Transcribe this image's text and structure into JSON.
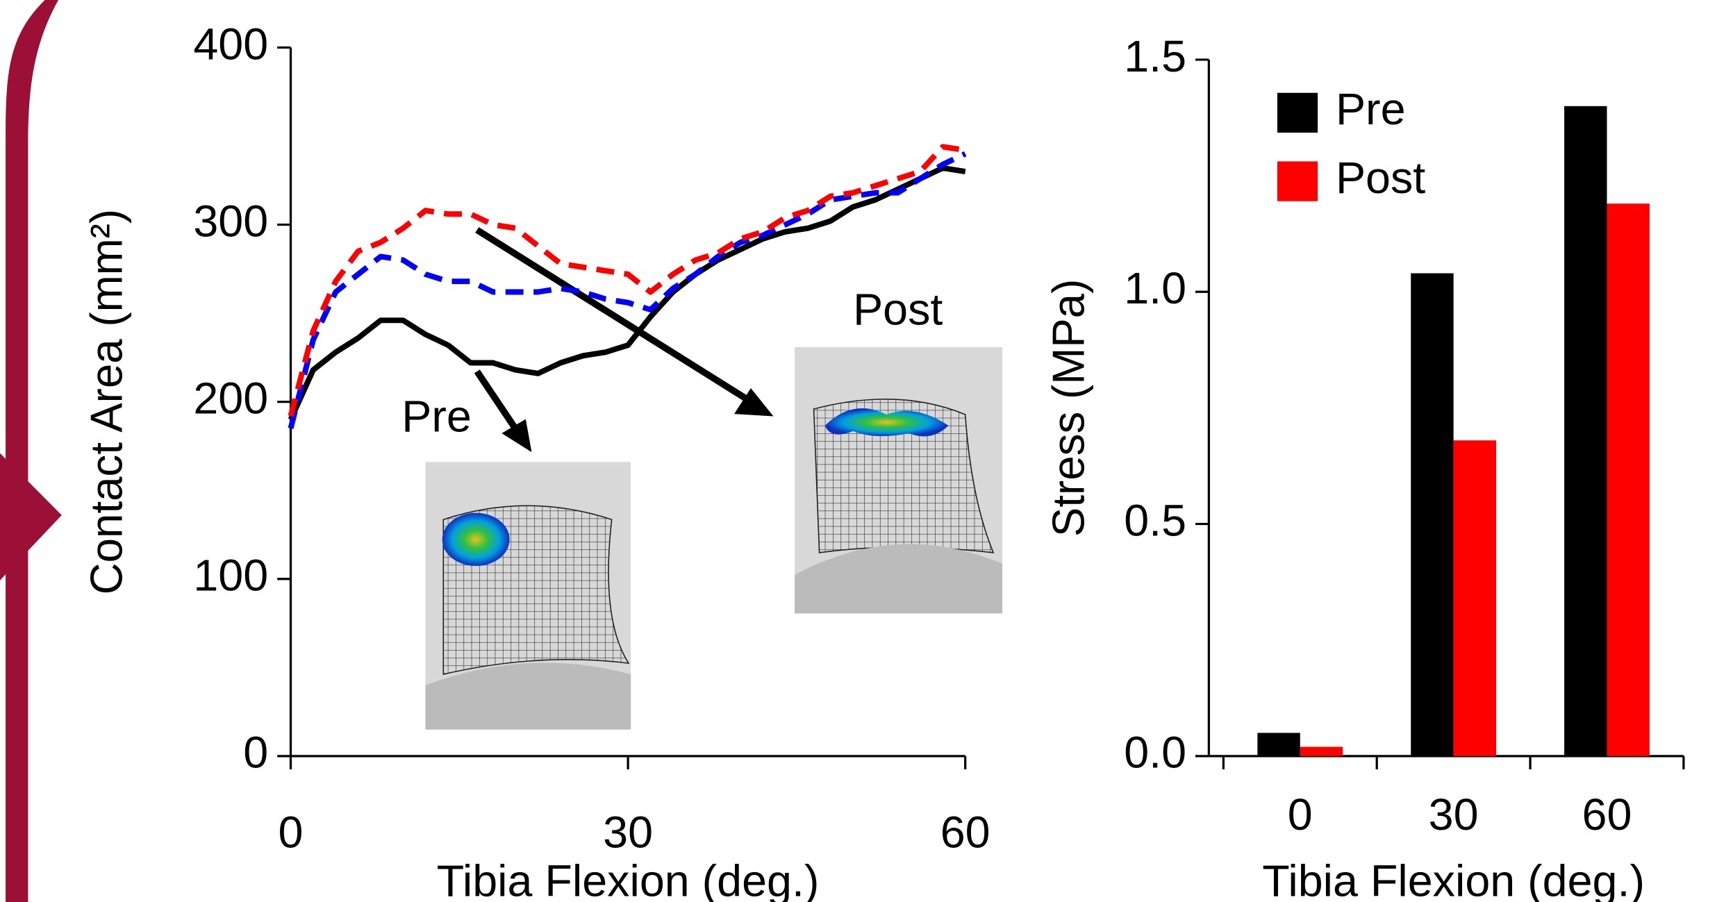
{
  "chart_data": [
    {
      "type": "line",
      "y_label": "Contact Area (mm²)",
      "x_label": "Tibia Flexion (deg.)",
      "annotations": [
        "Pre",
        "Post"
      ],
      "x": [
        0,
        2,
        4,
        6,
        8,
        10,
        12,
        14,
        16,
        18,
        20,
        22,
        24,
        26,
        28,
        30,
        32,
        34,
        36,
        38,
        40,
        42,
        44,
        46,
        48,
        50,
        52,
        54,
        56,
        58,
        60
      ],
      "series": [
        {
          "color": "#000000",
          "dash": "solid",
          "values": [
            190,
            218,
            228,
            236,
            246,
            246,
            238,
            232,
            222,
            222,
            218,
            216,
            222,
            226,
            228,
            232,
            248,
            262,
            272,
            280,
            286,
            292,
            296,
            298,
            302,
            310,
            314,
            320,
            326,
            332,
            330
          ]
        },
        {
          "color": "#0000ff",
          "dash": "dashed",
          "values": [
            185,
            235,
            262,
            272,
            282,
            280,
            272,
            268,
            268,
            262,
            262,
            262,
            264,
            262,
            258,
            256,
            252,
            264,
            272,
            282,
            290,
            294,
            300,
            306,
            314,
            316,
            318,
            318,
            326,
            334,
            340
          ]
        },
        {
          "color": "#ff0000",
          "dash": "dashed",
          "values": [
            192,
            240,
            268,
            285,
            290,
            298,
            308,
            306,
            306,
            300,
            298,
            288,
            278,
            276,
            274,
            272,
            262,
            272,
            280,
            284,
            292,
            296,
            304,
            308,
            316,
            318,
            322,
            326,
            330,
            344,
            342
          ]
        }
      ],
      "xlim": [
        0,
        60
      ],
      "xticks": [
        0,
        30,
        60
      ],
      "ylim": [
        0,
        400
      ],
      "yticks": [
        0,
        100,
        200,
        300,
        400
      ]
    },
    {
      "type": "bar",
      "y_label": "Stress (MPa)",
      "x_label": "Tibia Flexion (deg.)",
      "categories": [
        "0",
        "30",
        "60"
      ],
      "series": [
        {
          "name": "Pre",
          "color": "#000000",
          "values": [
            0.05,
            1.04,
            1.4
          ]
        },
        {
          "name": "Post",
          "color": "#ff0000",
          "values": [
            0.02,
            0.68,
            1.19
          ]
        }
      ],
      "ylim": [
        0,
        1.5
      ],
      "yticks": [
        {
          "value": 0,
          "label": "0.0"
        },
        {
          "value": 0.5,
          "label": "0.5"
        },
        {
          "value": 1,
          "label": "1.0"
        },
        {
          "value": 1.5,
          "label": "1.5"
        }
      ],
      "legend": "upper-left"
    }
  ]
}
